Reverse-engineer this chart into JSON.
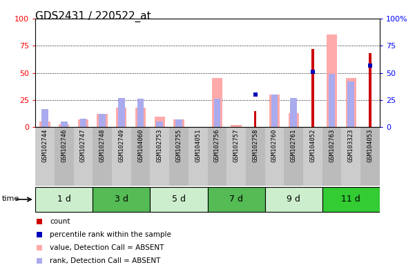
{
  "title": "GDS2431 / 220522_at",
  "samples": [
    "GSM102744",
    "GSM102746",
    "GSM102747",
    "GSM102748",
    "GSM102749",
    "GSM104060",
    "GSM102753",
    "GSM102755",
    "GSM104051",
    "GSM102756",
    "GSM102757",
    "GSM102758",
    "GSM102760",
    "GSM102761",
    "GSM104052",
    "GSM102763",
    "GSM103323",
    "GSM104053"
  ],
  "groups": [
    {
      "label": "1 d",
      "indices": [
        0,
        1,
        2
      ],
      "color": "#cceecc"
    },
    {
      "label": "3 d",
      "indices": [
        3,
        4,
        5
      ],
      "color": "#55bb55"
    },
    {
      "label": "5 d",
      "indices": [
        6,
        7,
        8
      ],
      "color": "#cceecc"
    },
    {
      "label": "7 d",
      "indices": [
        9,
        10,
        11
      ],
      "color": "#55bb55"
    },
    {
      "label": "9 d",
      "indices": [
        12,
        13,
        14
      ],
      "color": "#cceecc"
    },
    {
      "label": "11 d",
      "indices": [
        15,
        16,
        17
      ],
      "color": "#33cc33"
    }
  ],
  "count_values": [
    0,
    0,
    0,
    0,
    0,
    0,
    0,
    0,
    0,
    0,
    0,
    15,
    0,
    0,
    72,
    0,
    0,
    68
  ],
  "percentile_values": [
    0,
    0,
    0,
    0,
    0,
    0,
    0,
    0,
    0,
    0,
    0,
    30,
    0,
    0,
    51,
    0,
    0,
    57
  ],
  "value_absent_values": [
    5,
    3,
    7,
    12,
    18,
    18,
    10,
    7,
    0,
    45,
    2,
    0,
    30,
    13,
    0,
    85,
    45,
    0
  ],
  "rank_absent_values": [
    17,
    5,
    8,
    12,
    27,
    26,
    5,
    7,
    0,
    26,
    0,
    0,
    30,
    27,
    0,
    49,
    42,
    0
  ],
  "ylim": [
    0,
    100
  ],
  "grid_lines": [
    25,
    50,
    75
  ],
  "count_color": "#cc0000",
  "percentile_color": "#0000bb",
  "value_absent_color": "#ffaaaa",
  "rank_absent_color": "#aaaaee",
  "sample_bg_color": "#cccccc",
  "title_fontsize": 11,
  "tick_fontsize": 6.5,
  "group_fontsize": 9
}
